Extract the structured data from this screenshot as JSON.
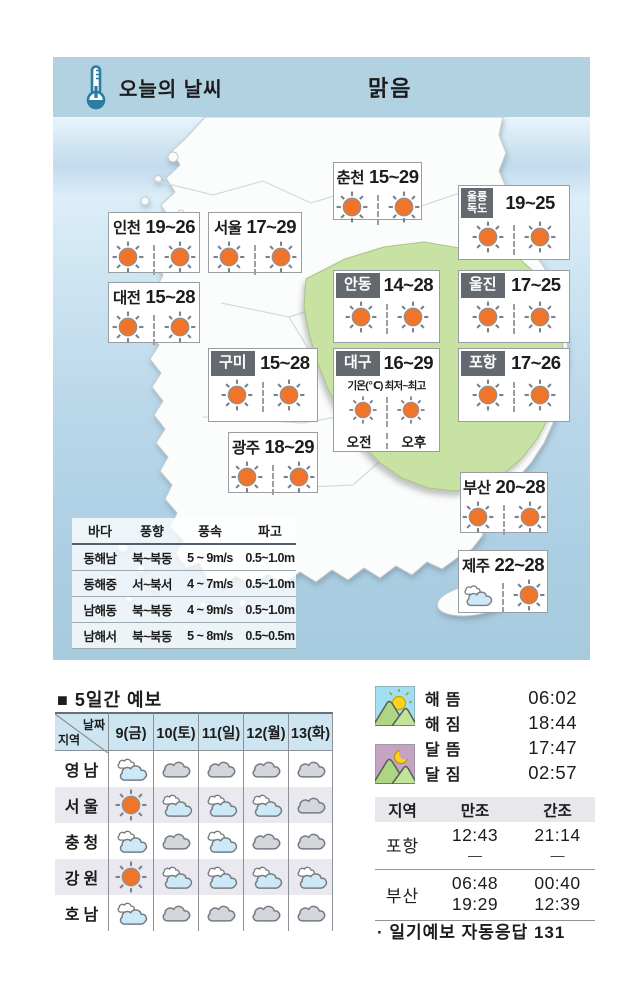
{
  "header": {
    "title": "오늘의 날씨",
    "condition": "맑음",
    "icon": "thermometer-icon"
  },
  "colors": {
    "header_band": "#b2d1e1",
    "sun_orange": "#f0742a",
    "badge_bg": "#63696e",
    "map_green": "#c8e2a4",
    "forecast_header_bg": "#cde4f1",
    "alt_row": "#e9e9ef"
  },
  "map": {
    "cities": [
      {
        "id": "incheon",
        "name": "인천",
        "temp": "19~26",
        "style": "plain",
        "am": "sun",
        "pm": "sun"
      },
      {
        "id": "seoul",
        "name": "서울",
        "temp": "17~29",
        "style": "plain",
        "am": "sun",
        "pm": "sun"
      },
      {
        "id": "daejeon",
        "name": "대전",
        "temp": "15~28",
        "style": "plain",
        "am": "sun",
        "pm": "sun"
      },
      {
        "id": "chuncheon",
        "name": "춘천",
        "temp": "15~29",
        "style": "plain",
        "am": "sun",
        "pm": "sun"
      },
      {
        "id": "ulleung",
        "name": "울릉독도",
        "lines": [
          "울릉",
          "독도"
        ],
        "temp": "19~25",
        "style": "badge2",
        "am": "sun",
        "pm": "sun"
      },
      {
        "id": "andong",
        "name": "안동",
        "temp": "14~28",
        "style": "badge",
        "am": "sun",
        "pm": "sun"
      },
      {
        "id": "uljin",
        "name": "울진",
        "temp": "17~25",
        "style": "badge",
        "am": "sun",
        "pm": "sun"
      },
      {
        "id": "gumi",
        "name": "구미",
        "temp": "15~28",
        "style": "badge",
        "am": "sun",
        "pm": "sun"
      },
      {
        "id": "daegu",
        "name": "대구",
        "temp": "16~29",
        "style": "legend",
        "am": "sun",
        "pm": "sun",
        "legend": "기온(℃) 최저~최고",
        "am_label": "오전",
        "pm_label": "오후"
      },
      {
        "id": "pohang",
        "name": "포항",
        "temp": "17~26",
        "style": "badge",
        "am": "sun",
        "pm": "sun"
      },
      {
        "id": "gwangju",
        "name": "광주",
        "temp": "18~29",
        "style": "plain",
        "am": "sun",
        "pm": "sun"
      },
      {
        "id": "busan",
        "name": "부산",
        "temp": "20~28",
        "style": "plain",
        "am": "sun",
        "pm": "sun"
      },
      {
        "id": "jeju",
        "name": "제주",
        "temp": "22~28",
        "style": "plain",
        "am": "partly",
        "pm": "sun"
      }
    ],
    "sea_table": {
      "headers": [
        "바다",
        "풍향",
        "풍속",
        "파고"
      ],
      "rows": [
        [
          "동해남",
          "북~북동",
          "5 ~ 9m/s",
          "0.5~1.0m"
        ],
        [
          "동해중",
          "서~북서",
          "4 ~ 7m/s",
          "0.5~1.0m"
        ],
        [
          "남해동",
          "북~북동",
          "4 ~ 9m/s",
          "0.5~1.0m"
        ],
        [
          "남해서",
          "북~북동",
          "5 ~ 8m/s",
          "0.5~0.5m"
        ]
      ]
    }
  },
  "forecast": {
    "title": "■ 5일간 예보",
    "corner": {
      "top": "날짜",
      "bottom": "지역"
    },
    "days": [
      "9(금)",
      "10(토)",
      "11(일)",
      "12(월)",
      "13(화)"
    ],
    "regions": [
      {
        "name": "영남",
        "icons": [
          "partly",
          "cloudy",
          "cloudy",
          "cloudy",
          "cloudy"
        ]
      },
      {
        "name": "서울",
        "icons": [
          "sun",
          "partly",
          "partly",
          "partly",
          "cloudy"
        ]
      },
      {
        "name": "충청",
        "icons": [
          "partly",
          "cloudy",
          "partly",
          "cloudy",
          "cloudy"
        ]
      },
      {
        "name": "강원",
        "icons": [
          "sun",
          "partly",
          "partly",
          "partly",
          "partly"
        ]
      },
      {
        "name": "호남",
        "icons": [
          "partly",
          "cloudy",
          "cloudy",
          "cloudy",
          "cloudy"
        ]
      }
    ]
  },
  "astro": {
    "icons": [
      "sunrise-mountain-icon",
      "moonrise-mountain-icon"
    ],
    "rows": [
      {
        "label": "해뜸",
        "time": "06:02"
      },
      {
        "label": "해짐",
        "time": "18:44"
      },
      {
        "label": "달뜸",
        "time": "17:47"
      },
      {
        "label": "달짐",
        "time": "02:57"
      }
    ]
  },
  "tide": {
    "headers": [
      "지역",
      "만조",
      "간조"
    ],
    "rows": [
      {
        "region": "포항",
        "manjo": [
          "12:43",
          "—"
        ],
        "ganjo": [
          "21:14",
          "—"
        ]
      },
      {
        "region": "부산",
        "manjo": [
          "06:48",
          "19:29"
        ],
        "ganjo": [
          "00:40",
          "12:39"
        ]
      }
    ]
  },
  "footer": {
    "note": "· 일기예보 자동응답 131"
  }
}
